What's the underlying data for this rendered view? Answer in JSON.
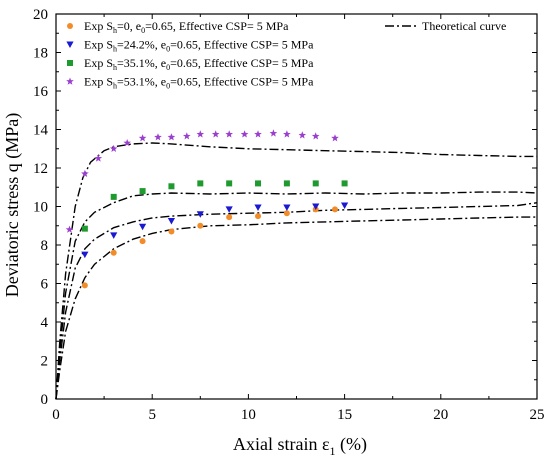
{
  "chart_data": {
    "type": "scatter",
    "xlabel": {
      "main": "Axial strain ε",
      "sub": "1",
      "tail": " (%)"
    },
    "ylabel": "Deviatoric stress q (MPa)",
    "xlim": [
      0,
      25
    ],
    "ylim": [
      0,
      20
    ],
    "xticks": [
      "0",
      "5",
      "10",
      "15",
      "20",
      "25"
    ],
    "yticks": [
      "0",
      "2",
      "4",
      "6",
      "8",
      "10",
      "12",
      "14",
      "16",
      "18",
      "20"
    ],
    "grid": false,
    "legend_position": "top",
    "series": [
      {
        "name": "Exp Sh=0, e0=0.65, Effective CSP= 5 MPa",
        "legend": {
          "a": "Exp S",
          "sub1": "h",
          "b": "=0, e",
          "sub2": "0",
          "c": "=0.65, Effective CSP= 5 MPa"
        },
        "marker": "circle",
        "color": "#F28C28",
        "x": [
          1.5,
          3.0,
          4.5,
          6.0,
          7.5,
          9.0,
          10.5,
          12.0,
          13.5,
          14.5
        ],
        "y": [
          5.9,
          7.6,
          8.2,
          8.7,
          9.0,
          9.45,
          9.5,
          9.65,
          9.85,
          9.85
        ]
      },
      {
        "name": "Exp Sh=24.2%, e0=0.65, Effective CSP= 5 MPa",
        "legend": {
          "a": "Exp S",
          "sub1": "h",
          "b": "=24.2%, e",
          "sub2": "0",
          "c": "=0.65, Effective CSP= 5 MPa"
        },
        "marker": "triangle-down",
        "color": "#1A1AD2",
        "x": [
          1.5,
          3.0,
          4.5,
          6.0,
          7.5,
          9.0,
          10.5,
          12.0,
          13.5,
          15.0
        ],
        "y": [
          7.5,
          8.5,
          8.95,
          9.25,
          9.6,
          9.85,
          9.95,
          9.95,
          10.0,
          10.05
        ]
      },
      {
        "name": "Exp Sh=35.1%, e0=0.65, Effective CSP= 5 MPa",
        "legend": {
          "a": "Exp S",
          "sub1": "h",
          "b": "=35.1%, e",
          "sub2": "0",
          "c": "=0.65, Effective CSP= 5 MPa"
        },
        "marker": "square",
        "color": "#1E9A2E",
        "x": [
          1.5,
          3.0,
          4.5,
          6.0,
          7.5,
          9.0,
          10.5,
          12.0,
          13.5,
          15.0
        ],
        "y": [
          8.85,
          10.5,
          10.8,
          11.05,
          11.2,
          11.2,
          11.2,
          11.2,
          11.2,
          11.2
        ]
      },
      {
        "name": "Exp Sh=53.1%, e0=0.65, Effective CSP= 5 MPa",
        "legend": {
          "a": "Exp S",
          "sub1": "h",
          "b": "=53.1%, e",
          "sub2": "0",
          "c": "=0.65, Effective CSP= 5 MPa"
        },
        "marker": "star",
        "color": "#9B3FCF",
        "x": [
          0.7,
          1.5,
          2.2,
          3.0,
          3.7,
          4.5,
          5.3,
          6.0,
          6.8,
          7.5,
          8.3,
          9.0,
          9.8,
          10.5,
          11.3,
          12.0,
          12.8,
          13.5,
          14.5
        ],
        "y": [
          8.8,
          11.7,
          12.5,
          13.0,
          13.3,
          13.55,
          13.6,
          13.6,
          13.65,
          13.75,
          13.75,
          13.75,
          13.75,
          13.75,
          13.8,
          13.75,
          13.7,
          13.65,
          13.55
        ]
      }
    ],
    "theoretical": {
      "name": "Theoretical curve",
      "color": "#000000",
      "curves": [
        {
          "x": [
            0,
            0.2,
            0.5,
            1,
            1.5,
            2,
            3,
            4,
            5,
            6,
            8,
            10,
            12,
            14,
            16,
            18,
            20,
            22,
            24,
            25
          ],
          "y": [
            0,
            1.5,
            3.5,
            5.2,
            6.3,
            7.0,
            7.8,
            8.3,
            8.6,
            8.8,
            9.0,
            9.05,
            9.15,
            9.2,
            9.25,
            9.3,
            9.35,
            9.4,
            9.45,
            9.45
          ]
        },
        {
          "x": [
            0,
            0.2,
            0.5,
            1,
            1.5,
            2,
            3,
            4,
            5,
            6,
            8,
            10,
            12,
            14,
            16,
            18,
            20,
            22,
            24,
            25
          ],
          "y": [
            0,
            2.0,
            4.5,
            6.8,
            7.8,
            8.3,
            8.9,
            9.2,
            9.4,
            9.5,
            9.6,
            9.65,
            9.7,
            9.8,
            9.85,
            9.9,
            9.95,
            10.0,
            10.05,
            10.2
          ]
        },
        {
          "x": [
            0,
            0.2,
            0.5,
            1,
            1.5,
            2,
            3,
            4,
            5,
            6,
            8,
            10,
            12,
            14,
            16,
            18,
            20,
            22,
            24,
            25
          ],
          "y": [
            0,
            2.5,
            5.5,
            8.2,
            9.2,
            9.7,
            10.2,
            10.55,
            10.65,
            10.7,
            10.65,
            10.7,
            10.65,
            10.7,
            10.65,
            10.7,
            10.7,
            10.75,
            10.75,
            10.7
          ]
        },
        {
          "x": [
            0,
            0.2,
            0.5,
            1,
            1.4,
            1.8,
            2.5,
            3,
            4,
            5,
            6,
            8,
            10,
            12,
            14,
            16,
            18,
            20,
            22,
            24,
            25
          ],
          "y": [
            0,
            3.0,
            6.5,
            10.0,
            11.5,
            12.3,
            12.9,
            13.1,
            13.25,
            13.3,
            13.25,
            13.1,
            13.0,
            12.95,
            12.9,
            12.85,
            12.8,
            12.7,
            12.65,
            12.6,
            12.6
          ]
        }
      ]
    }
  }
}
